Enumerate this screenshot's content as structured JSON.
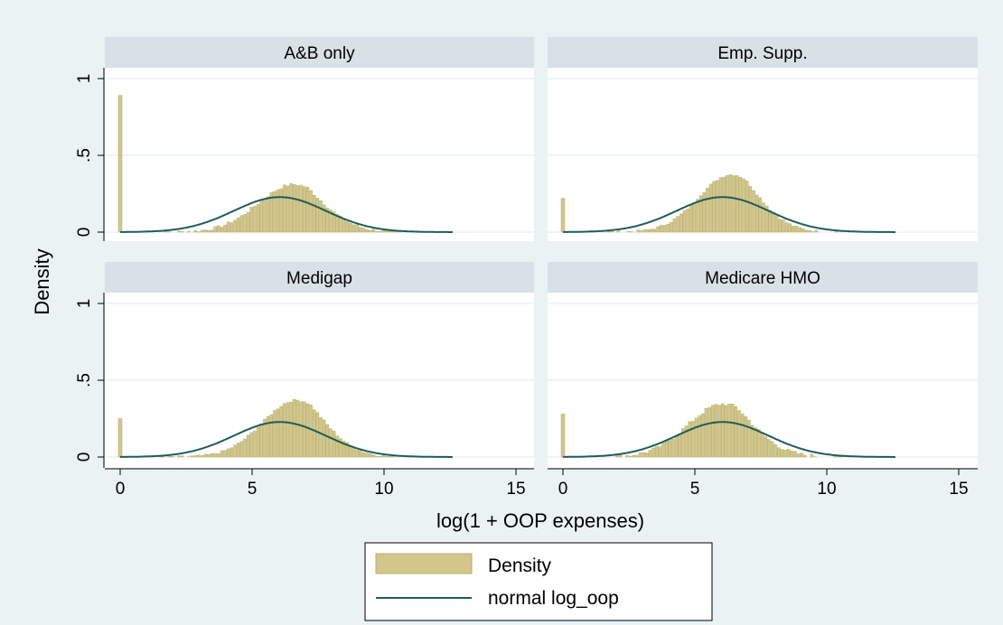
{
  "chart_data": {
    "type": "bar",
    "ylabel": "Density",
    "xlabel": "log(1 + OOP expenses)",
    "xlim": [
      0,
      15
    ],
    "ylim": [
      0,
      1
    ],
    "x_ticks": [
      {
        "value": 0,
        "label": "0"
      },
      {
        "value": 5,
        "label": "5"
      },
      {
        "value": 10,
        "label": "10"
      },
      {
        "value": 15,
        "label": "15"
      }
    ],
    "y_ticks": [
      {
        "value": 0,
        "label": "0"
      },
      {
        "value": 0.5,
        "label": ".5"
      },
      {
        "value": 1,
        "label": "1"
      }
    ],
    "normal_curve": {
      "mean": 6.05,
      "sd": 1.75,
      "x_range": [
        0,
        12.6
      ]
    },
    "legend": {
      "placement": "bottom",
      "entries": [
        {
          "label": "Density",
          "kind": "bar"
        },
        {
          "label": "normal log_oop",
          "kind": "line"
        }
      ]
    },
    "colors": {
      "bar_fill": "#d1c78d",
      "bar_edge": "#b9ad69",
      "curve": "#1f5c5c",
      "panel_header": "#d8e1e6",
      "plot_bg": "#ffffff",
      "outer_bg": "#eaf2f3"
    },
    "panels": [
      {
        "title": "A&B only",
        "spike": 0.89,
        "hist": {
          "mean": 6.6,
          "sd": 1.35,
          "peak": 0.31,
          "start": 0.8,
          "end": 10.6,
          "noise": 0.02
        }
      },
      {
        "title": "Emp. Supp.",
        "spike": 0.22,
        "hist": {
          "mean": 6.4,
          "sd": 1.25,
          "peak": 0.375,
          "start": 0.8,
          "end": 10.6,
          "noise": 0.015
        }
      },
      {
        "title": "Medigap",
        "spike": 0.25,
        "hist": {
          "mean": 6.7,
          "sd": 1.3,
          "peak": 0.37,
          "start": 0.8,
          "end": 10.6,
          "noise": 0.015
        }
      },
      {
        "title": "Medicare HMO",
        "spike": 0.28,
        "hist": {
          "mean": 6.1,
          "sd": 1.35,
          "peak": 0.345,
          "start": 1.5,
          "end": 10.6,
          "noise": 0.025
        }
      }
    ]
  }
}
